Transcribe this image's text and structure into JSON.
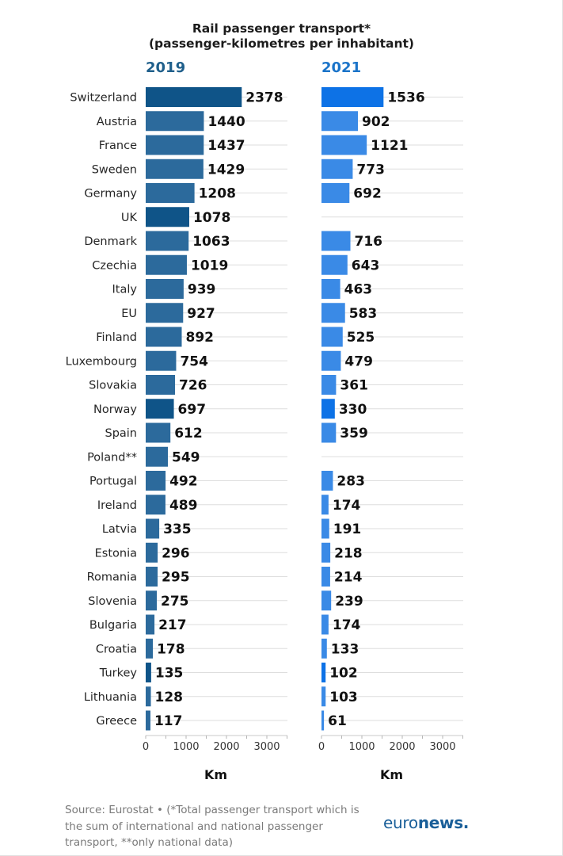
{
  "title_line1": "Rail passenger transport*",
  "title_line2": "(passenger-kilometres per inhabitant)",
  "source": "Source: Eurostat • (*Total passenger transport which is the sum of international and national passenger transport, **only national data)",
  "logo": {
    "light": "euro",
    "bold": "news."
  },
  "colors": {
    "bar_2019": "#2c6a9c",
    "bar_2019_highlight": "#0f5488",
    "bar_2021": "#3a8ae6",
    "bar_2021_highlight": "#0d72e6",
    "grid": "#dedede",
    "year_2019": "#1f5f8b",
    "year_2021": "#1b74c9"
  },
  "chart_data": {
    "type": "bar",
    "orientation": "horizontal",
    "categories": [
      "Switzerland",
      "Austria",
      "France",
      "Sweden",
      "Germany",
      "UK",
      "Denmark",
      "Czechia",
      "Italy",
      "EU",
      "Finland",
      "Luxembourg",
      "Slovakia",
      "Norway",
      "Spain",
      "Poland**",
      "Portugal",
      "Ireland",
      "Latvia",
      "Estonia",
      "Romania",
      "Slovenia",
      "Bulgaria",
      "Croatia",
      "Turkey",
      "Lithuania",
      "Greece"
    ],
    "highlighted": [
      "Switzerland",
      "UK",
      "Norway",
      "Turkey"
    ],
    "panels": [
      {
        "name": "2019",
        "values": [
          2378,
          1440,
          1437,
          1429,
          1208,
          1078,
          1063,
          1019,
          939,
          927,
          892,
          754,
          726,
          697,
          612,
          549,
          492,
          489,
          335,
          296,
          295,
          275,
          217,
          178,
          135,
          128,
          117
        ],
        "xlabel": "Km",
        "xlim": [
          0,
          3500
        ],
        "xticks": [
          0,
          1000,
          2000,
          3000
        ]
      },
      {
        "name": "2021",
        "values": [
          1536,
          902,
          1121,
          773,
          692,
          null,
          716,
          643,
          463,
          583,
          525,
          479,
          361,
          330,
          359,
          null,
          283,
          174,
          191,
          218,
          214,
          239,
          174,
          133,
          102,
          103,
          61
        ],
        "xlabel": "Km",
        "xlim": [
          0,
          3500
        ],
        "xticks": [
          0,
          1000,
          2000,
          3000
        ]
      }
    ],
    "grid": true
  }
}
